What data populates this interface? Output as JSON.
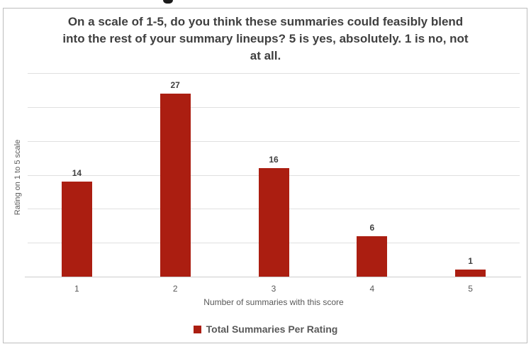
{
  "colors": {
    "bar": "#ab1e11",
    "gridline": "#e0e0e0",
    "axis_line": "#cccccc",
    "text_dark": "#3f3f3f",
    "text_muted": "#595959",
    "frame_border": "#bdbdbd"
  },
  "chart_data": {
    "type": "bar",
    "title": "On a scale of 1-5, do you think these summaries could feasibly blend into the rest of your summary lineups? 5 is yes, absolutely. 1 is no, not at all.",
    "title_lines": [
      "On a scale of 1-5, do you think these summaries could feasibly blend",
      "into the rest of your summary lineups? 5 is yes, absolutely. 1 is no, not",
      "at all."
    ],
    "categories": [
      "1",
      "2",
      "3",
      "4",
      "5"
    ],
    "values": [
      14,
      27,
      16,
      6,
      1
    ],
    "data_labels": [
      "14",
      "27",
      "16",
      "6",
      "1"
    ],
    "series_name": "Total Summaries Per Rating",
    "xlabel": "Number of summaries with this score",
    "ylabel": "Rating on 1 to 5 scale",
    "ylim": [
      0,
      32
    ],
    "gridlines": [
      5,
      10,
      15,
      20,
      25,
      30
    ],
    "grid": true,
    "legend": {
      "position": "bottom",
      "label": "Total Summaries Per Rating",
      "swatch_color": "#ab1e11"
    }
  }
}
